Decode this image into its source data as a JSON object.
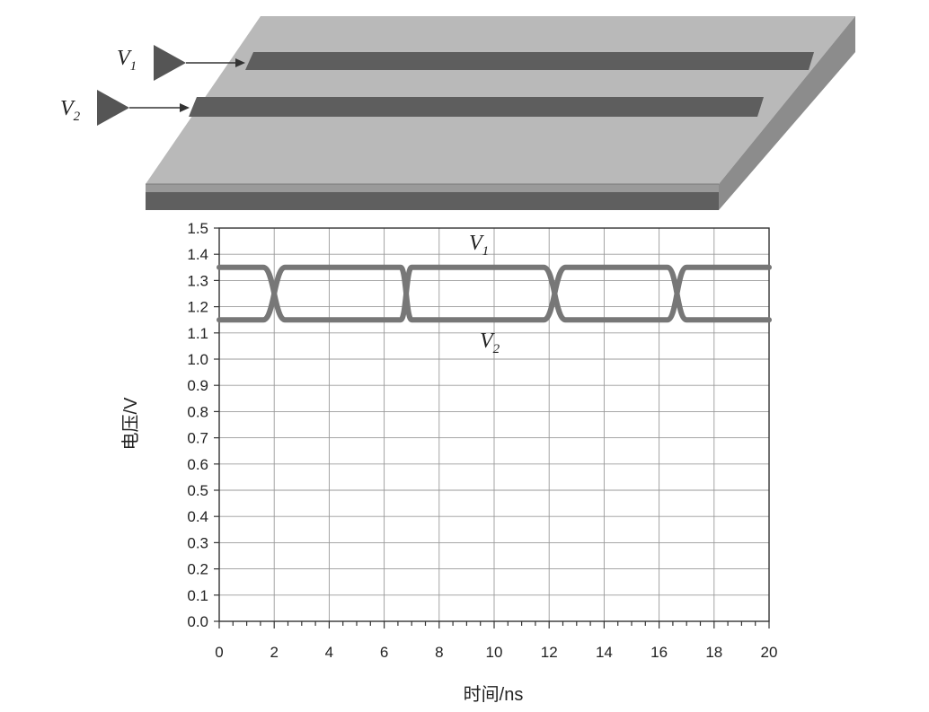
{
  "diagram": {
    "signals": [
      {
        "name": "V",
        "sub": "1"
      },
      {
        "name": "V",
        "sub": "2"
      }
    ],
    "colors": {
      "board_top": "#b8b8b8",
      "board_front": "#6a6a6a",
      "board_side": "#8a8a8a",
      "trace": "#5c5c5c",
      "driver": "#555555"
    }
  },
  "chart_data": {
    "type": "line",
    "xlabel": "时间/ns",
    "ylabel": "电压/V",
    "xlim": [
      0,
      20
    ],
    "ylim": [
      0,
      1.5
    ],
    "x_ticks": [
      "0",
      "2",
      "4",
      "6",
      "8",
      "10",
      "12",
      "14",
      "16",
      "18",
      "20"
    ],
    "y_ticks": [
      "0.0",
      "0.1",
      "0.2",
      "0.3",
      "0.4",
      "0.5",
      "0.6",
      "0.7",
      "0.8",
      "0.9",
      "1.0",
      "1.1",
      "1.2",
      "1.3",
      "1.4",
      "1.5"
    ],
    "grid": true,
    "series": [
      {
        "name": "V1",
        "label_main": "V",
        "label_sub": "1",
        "color": "#777777",
        "x": [
          0,
          1.6,
          2.4,
          6.6,
          7.0,
          11.8,
          12.6,
          16.3,
          17.0,
          20
        ],
        "y": [
          1.35,
          1.35,
          1.15,
          1.15,
          1.35,
          1.35,
          1.15,
          1.15,
          1.35,
          1.35
        ]
      },
      {
        "name": "V2",
        "label_main": "V",
        "label_sub": "2",
        "color": "#777777",
        "x": [
          0,
          1.6,
          2.4,
          6.6,
          7.0,
          11.8,
          12.6,
          16.3,
          17.0,
          20
        ],
        "y": [
          1.15,
          1.15,
          1.35,
          1.35,
          1.15,
          1.15,
          1.35,
          1.35,
          1.15,
          1.15
        ]
      }
    ]
  }
}
